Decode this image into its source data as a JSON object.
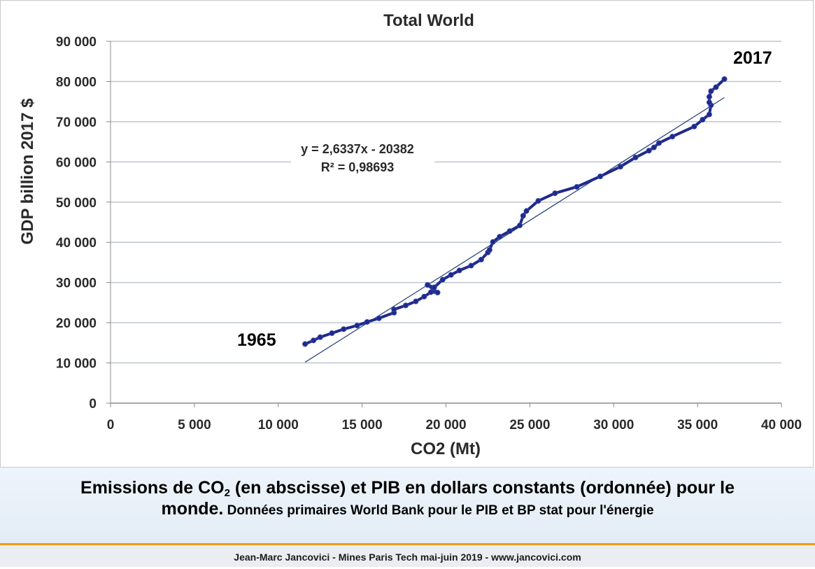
{
  "chart_data": {
    "type": "scatter",
    "title": "Total World",
    "xlabel": "CO2 (Mt)",
    "ylabel": "GDP billion 2017 $",
    "xlim": [
      0,
      40000
    ],
    "ylim": [
      0,
      90000
    ],
    "x_ticks": [
      0,
      5000,
      10000,
      15000,
      20000,
      25000,
      30000,
      35000,
      40000
    ],
    "x_tick_labels": [
      "0",
      "5 000",
      "10 000",
      "15 000",
      "20 000",
      "25 000",
      "30 000",
      "35 000",
      "40 000"
    ],
    "y_ticks": [
      0,
      10000,
      20000,
      30000,
      40000,
      50000,
      60000,
      70000,
      80000,
      90000
    ],
    "y_tick_labels": [
      "0",
      "10 000",
      "20 000",
      "30 000",
      "40 000",
      "50 000",
      "60 000",
      "70 000",
      "80 000",
      "90 000"
    ],
    "grid": "horizontal",
    "series": [
      {
        "x": [
          11600,
          12100,
          12500,
          13200,
          13900,
          14700,
          15300,
          16000,
          16900,
          16900,
          17600,
          18200,
          18700,
          19100,
          19500,
          18900,
          19300,
          19800,
          20300,
          20800,
          21500,
          22100,
          22500,
          22600,
          22800,
          23200,
          23800,
          24400,
          24600,
          24800,
          25500,
          26500,
          27800,
          29200,
          30400,
          31300,
          32100,
          32400,
          32700,
          33500,
          34800,
          35300,
          35700,
          35800,
          35700,
          35700,
          35800,
          36100,
          36600
        ],
        "y": [
          14700,
          15600,
          16400,
          17400,
          18400,
          19300,
          20200,
          21100,
          22500,
          23300,
          24300,
          25300,
          26500,
          27600,
          27500,
          29400,
          28800,
          30700,
          31900,
          33000,
          34200,
          35700,
          37500,
          38100,
          40100,
          41400,
          42800,
          44200,
          46600,
          47800,
          50300,
          52200,
          53800,
          56400,
          58800,
          61100,
          62800,
          63600,
          64700,
          66300,
          68800,
          70500,
          71800,
          74100,
          74800,
          76200,
          77600,
          78600,
          80600
        ]
      }
    ],
    "trendline": {
      "x": [
        11600,
        36600
      ],
      "y": [
        10167,
        76010
      ]
    },
    "annotations": {
      "equation": "y = 2,6337x - 20382",
      "r_squared": "R² = 0,98693",
      "start_label": "1965",
      "end_label": "2017"
    },
    "colors": {
      "series": "#1f2a8a",
      "trendline": "#2e4a7d",
      "grid": "#bfc6cf"
    }
  },
  "caption": {
    "part1": "Emissions de CO",
    "sub": "2",
    "part2": " (en abscisse) et PIB en dollars constants (ordonnée) pour le",
    "line2_bold": "monde.",
    "line2_small": " Données primaires World Bank pour le PIB et BP stat pour l'énergie"
  },
  "footer": {
    "text": "Jean-Marc Jancovici - Mines Paris Tech mai-juin 2019 - www.jancovici.com"
  }
}
